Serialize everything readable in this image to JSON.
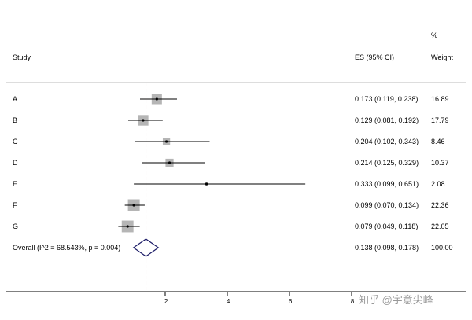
{
  "header": {
    "study_label": "Study",
    "es_label": "ES (95% CI)",
    "weight_pct_label": "%",
    "weight_label": "Weight"
  },
  "watermark": "知乎 @宇意尖峰",
  "chart_data": {
    "type": "forest",
    "reference_line": 0.138,
    "x_ticks": [
      ".2",
      ".4",
      ".6",
      ".8"
    ],
    "x_tick_values": [
      0.2,
      0.4,
      0.6,
      0.8
    ],
    "studies": [
      {
        "label": "A",
        "es": 0.173,
        "lo": 0.119,
        "hi": 0.238,
        "es_text": "0.173 (0.119, 0.238)",
        "weight": 16.89,
        "weight_text": "16.89"
      },
      {
        "label": "B",
        "es": 0.129,
        "lo": 0.081,
        "hi": 0.192,
        "es_text": "0.129 (0.081, 0.192)",
        "weight": 17.79,
        "weight_text": "17.79"
      },
      {
        "label": "C",
        "es": 0.204,
        "lo": 0.102,
        "hi": 0.343,
        "es_text": "0.204 (0.102, 0.343)",
        "weight": 8.46,
        "weight_text": "8.46"
      },
      {
        "label": "D",
        "es": 0.214,
        "lo": 0.125,
        "hi": 0.329,
        "es_text": "0.214 (0.125, 0.329)",
        "weight": 10.37,
        "weight_text": "10.37"
      },
      {
        "label": "E",
        "es": 0.333,
        "lo": 0.099,
        "hi": 0.651,
        "es_text": "0.333 (0.099, 0.651)",
        "weight": 2.08,
        "weight_text": "2.08"
      },
      {
        "label": "F",
        "es": 0.099,
        "lo": 0.07,
        "hi": 0.134,
        "es_text": "0.099 (0.070, 0.134)",
        "weight": 22.36,
        "weight_text": "22.36"
      },
      {
        "label": "G",
        "es": 0.079,
        "lo": 0.049,
        "hi": 0.118,
        "es_text": "0.079 (0.049, 0.118)",
        "weight": 22.05,
        "weight_text": "22.05"
      }
    ],
    "overall": {
      "label": "Overall  (I^2 = 68.543%, p = 0.004)",
      "es": 0.138,
      "lo": 0.098,
      "hi": 0.178,
      "es_text": "0.138 (0.098, 0.178)",
      "weight_text": "100.00"
    },
    "colors": {
      "box": "#b5b5b5",
      "diamond": "#1a1a66",
      "ref_line": "#c83246",
      "axis": "#000000",
      "separator": "#bbbbbb"
    }
  }
}
